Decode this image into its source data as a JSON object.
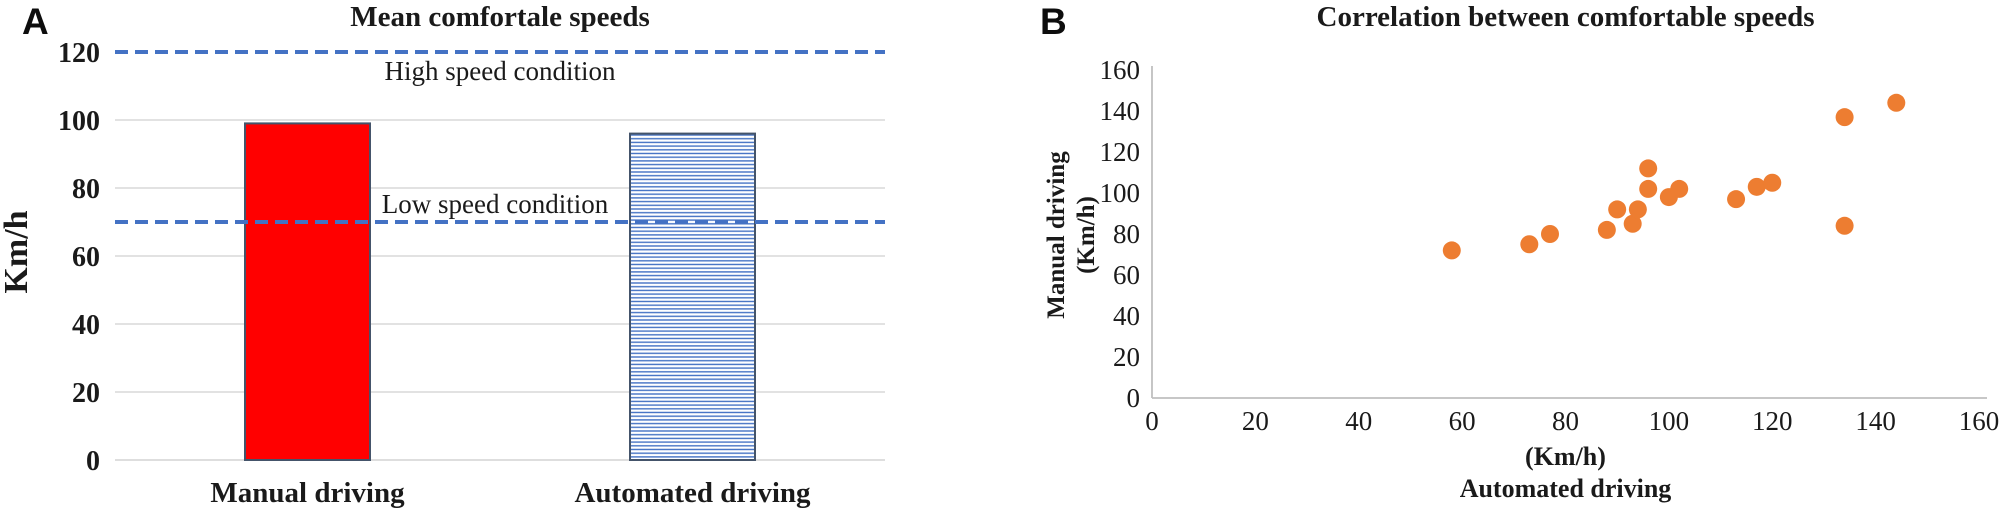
{
  "panel_a": {
    "letter": "A",
    "title": "Mean comfortale speeds",
    "y_axis_label": "Km/h",
    "high_line_label": "High speed condition",
    "low_line_label": "Low speed condition",
    "categories": [
      "Manual driving",
      "Automated driving"
    ]
  },
  "panel_b": {
    "letter": "B",
    "title": "Correlation between comfortable speeds",
    "y_axis_label_line1": "Manual driving",
    "y_axis_label_line2": "(Km/h)",
    "x_axis_label_line1": "(Km/h)",
    "x_axis_label_line2": "Automated driving"
  },
  "colors": {
    "manual_bar_fill": "#FF0000",
    "bar_border": "#44546A",
    "stripe_blue": "#4472C4",
    "reference_line_blue": "#4472C4",
    "scatter_orange": "#ED7D31",
    "gridline_gray": "#D9D9D9",
    "axis_gray": "#BFBFBF",
    "text_black": "#1a1a1a"
  },
  "chart_data": [
    {
      "type": "bar",
      "title": "Mean comfortale speeds",
      "ylabel": "Km/h",
      "categories": [
        "Manual driving",
        "Automated driving"
      ],
      "values": [
        99,
        96
      ],
      "ylim": [
        0,
        120
      ],
      "yticks": [
        0,
        20,
        40,
        60,
        80,
        100,
        120
      ],
      "grid": true,
      "legend": "none",
      "bar_styles": [
        "solid-red",
        "horizontal-blue-stripes-on-white"
      ],
      "reference_lines": [
        {
          "value": 120,
          "label": "High speed condition",
          "style": "dashed"
        },
        {
          "value": 70,
          "label": "Low speed condition",
          "style": "dashed"
        }
      ]
    },
    {
      "type": "scatter",
      "title": "Correlation between comfortable speeds",
      "xlabel": "(Km/h) Automated driving",
      "ylabel": "Manual driving (Km/h)",
      "xlim": [
        0,
        160
      ],
      "ylim": [
        0,
        160
      ],
      "xticks": [
        0,
        20,
        40,
        60,
        80,
        100,
        120,
        140,
        160
      ],
      "yticks": [
        0,
        20,
        40,
        60,
        80,
        100,
        120,
        140,
        160
      ],
      "grid": false,
      "legend": "none",
      "points": [
        {
          "x": 58,
          "y": 72
        },
        {
          "x": 73,
          "y": 75
        },
        {
          "x": 77,
          "y": 80
        },
        {
          "x": 88,
          "y": 82
        },
        {
          "x": 90,
          "y": 92
        },
        {
          "x": 93,
          "y": 85
        },
        {
          "x": 94,
          "y": 92
        },
        {
          "x": 96,
          "y": 112
        },
        {
          "x": 96,
          "y": 102
        },
        {
          "x": 100,
          "y": 98
        },
        {
          "x": 102,
          "y": 102
        },
        {
          "x": 113,
          "y": 97
        },
        {
          "x": 117,
          "y": 103
        },
        {
          "x": 120,
          "y": 105
        },
        {
          "x": 134,
          "y": 137
        },
        {
          "x": 134,
          "y": 84
        },
        {
          "x": 144,
          "y": 144
        }
      ]
    }
  ]
}
